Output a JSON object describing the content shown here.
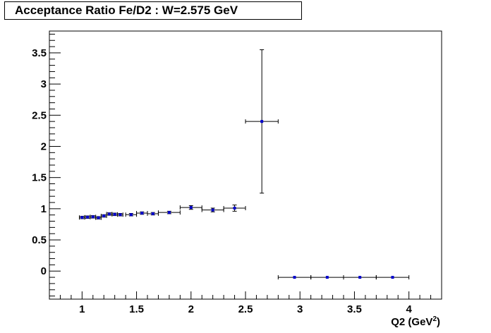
{
  "chart_data": {
    "type": "scatter",
    "title": "Acceptance Ratio Fe/D2 : W=2.575 GeV",
    "xlabel": "Q2 (GeV",
    "xlabel_sup": "2",
    "xlabel_close": ")",
    "ylabel": "",
    "xlim": [
      0.7,
      4.3
    ],
    "ylim": [
      -0.45,
      3.85
    ],
    "x_ticks": [
      1,
      1.5,
      2,
      2.5,
      3,
      3.5,
      4
    ],
    "x_tick_labels": [
      "1",
      "1.5",
      "2",
      "2.5",
      "3",
      "3.5",
      "4"
    ],
    "y_ticks": [
      0,
      0.5,
      1,
      1.5,
      2,
      2.5,
      3,
      3.5
    ],
    "y_tick_labels": [
      "0",
      "0.5",
      "1",
      "1.5",
      "2",
      "2.5",
      "3",
      "3.5"
    ],
    "grid": false,
    "marker_color": "#0000cc",
    "series": [
      {
        "points": [
          {
            "x": 1.0,
            "y": 0.86,
            "xerr": 0.025,
            "yerr": 0.02
          },
          {
            "x": 1.05,
            "y": 0.865,
            "xerr": 0.025,
            "yerr": 0.02
          },
          {
            "x": 1.1,
            "y": 0.87,
            "xerr": 0.025,
            "yerr": 0.02
          },
          {
            "x": 1.15,
            "y": 0.855,
            "xerr": 0.025,
            "yerr": 0.02
          },
          {
            "x": 1.2,
            "y": 0.885,
            "xerr": 0.025,
            "yerr": 0.02
          },
          {
            "x": 1.25,
            "y": 0.915,
            "xerr": 0.025,
            "yerr": 0.02
          },
          {
            "x": 1.3,
            "y": 0.91,
            "xerr": 0.025,
            "yerr": 0.02
          },
          {
            "x": 1.35,
            "y": 0.905,
            "xerr": 0.025,
            "yerr": 0.02
          },
          {
            "x": 1.45,
            "y": 0.905,
            "xerr": 0.05,
            "yerr": 0.02
          },
          {
            "x": 1.55,
            "y": 0.93,
            "xerr": 0.05,
            "yerr": 0.02
          },
          {
            "x": 1.65,
            "y": 0.92,
            "xerr": 0.05,
            "yerr": 0.02
          },
          {
            "x": 1.8,
            "y": 0.94,
            "xerr": 0.1,
            "yerr": 0.02
          },
          {
            "x": 2.0,
            "y": 1.02,
            "xerr": 0.1,
            "yerr": 0.03
          },
          {
            "x": 2.2,
            "y": 0.98,
            "xerr": 0.1,
            "yerr": 0.03
          },
          {
            "x": 2.4,
            "y": 1.01,
            "xerr": 0.1,
            "yerr": 0.05
          },
          {
            "x": 2.65,
            "y": 2.4,
            "xerr": 0.15,
            "yerr": 1.15
          },
          {
            "x": 2.95,
            "y": -0.1,
            "xerr": 0.15,
            "yerr": 0.0
          },
          {
            "x": 3.25,
            "y": -0.1,
            "xerr": 0.15,
            "yerr": 0.0
          },
          {
            "x": 3.55,
            "y": -0.1,
            "xerr": 0.15,
            "yerr": 0.0
          },
          {
            "x": 3.85,
            "y": -0.1,
            "xerr": 0.15,
            "yerr": 0.0
          }
        ]
      }
    ]
  }
}
